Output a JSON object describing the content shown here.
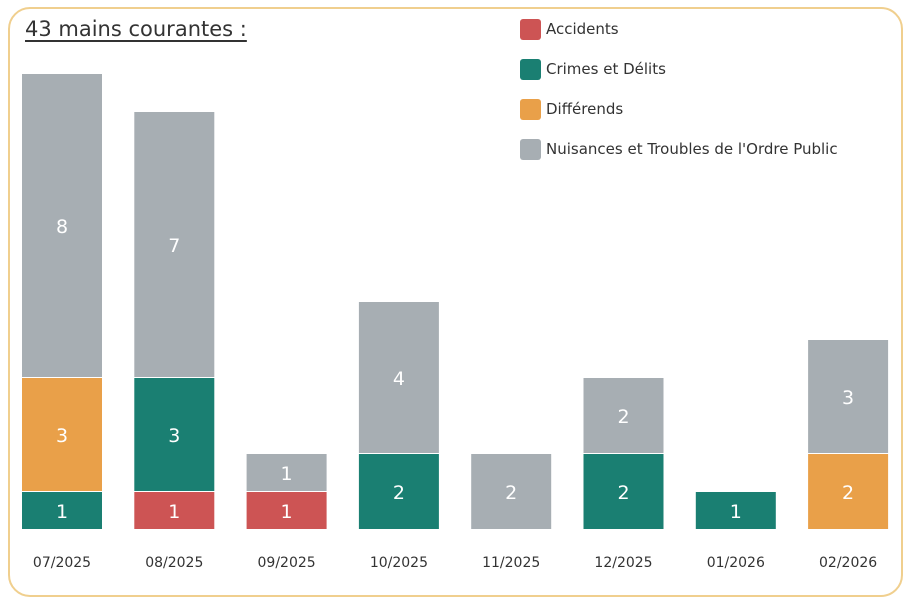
{
  "chart_data": {
    "type": "bar",
    "stacked": true,
    "title": "43 mains courantes :",
    "categories": [
      "07/2025",
      "08/2025",
      "09/2025",
      "10/2025",
      "11/2025",
      "12/2025",
      "01/2026",
      "02/2026"
    ],
    "series": [
      {
        "name": "Accidents",
        "color": "#cd5454",
        "values": [
          0,
          1,
          1,
          0,
          0,
          0,
          0,
          0
        ]
      },
      {
        "name": "Crimes et Délits",
        "color": "#1a7f72",
        "values": [
          1,
          3,
          0,
          2,
          0,
          2,
          1,
          0
        ]
      },
      {
        "name": "Différends",
        "color": "#e9a049",
        "values": [
          3,
          0,
          0,
          0,
          0,
          0,
          0,
          2
        ]
      },
      {
        "name": "Nuisances et Troubles de l'Ordre Public",
        "color": "#a7aeb3",
        "values": [
          8,
          7,
          1,
          4,
          2,
          2,
          0,
          3
        ]
      }
    ],
    "ylim": [
      0,
      12
    ],
    "legend_position": "top-right",
    "grid": false
  }
}
